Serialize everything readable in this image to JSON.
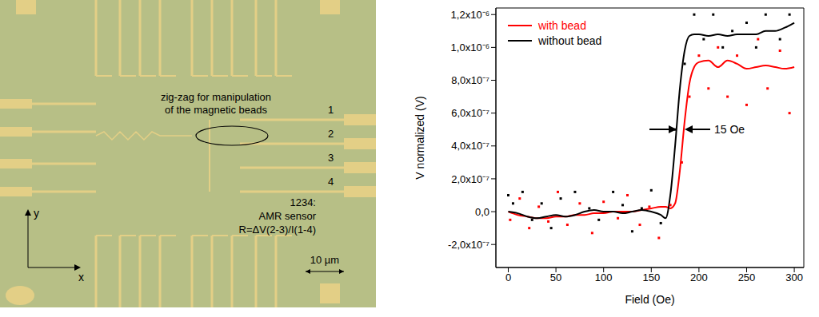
{
  "image_panel": {
    "zigzag_label": [
      "zig-zag for manipulation",
      "of the magnetic beads"
    ],
    "contact_numbers": [
      "1",
      "2",
      "3",
      "4"
    ],
    "sensor_label": [
      "1234:",
      "AMR sensor",
      "R=ΔV(2-3)/I(1-4)"
    ],
    "scale_bar": "10 µm",
    "axes": [
      "y",
      "x"
    ]
  },
  "chart_data": {
    "type": "line",
    "x_label": "Field (Oe)",
    "y_label": "V normalized (V)",
    "annotation": "15 Oe",
    "legend": "upper left",
    "marker": "square",
    "x": [
      0,
      10,
      20,
      30,
      40,
      50,
      60,
      70,
      80,
      90,
      100,
      110,
      120,
      130,
      140,
      150,
      160,
      165,
      170,
      175,
      180,
      185,
      190,
      195,
      200,
      210,
      220,
      230,
      240,
      250,
      260,
      270,
      280,
      290,
      300
    ],
    "series": [
      {
        "name": "with bead",
        "color": "#ff0000",
        "values": [
          0,
          -2e-08,
          -3e-08,
          -4e-08,
          -4e-08,
          -3e-08,
          -3e-08,
          -2e-08,
          -2e-08,
          -1e-08,
          -1e-08,
          0,
          0,
          0,
          1e-08,
          2e-08,
          3e-08,
          3e-08,
          2e-08,
          5e-08,
          2.5e-07,
          5.5e-07,
          7.8e-07,
          8.8e-07,
          9.1e-07,
          9.2e-07,
          8.8e-07,
          9.2e-07,
          9e-07,
          8.7e-07,
          8.8e-07,
          8.9e-07,
          8.8e-07,
          8.7e-07,
          8.8e-07
        ],
        "points": {
          "x": [
            2,
            12,
            22,
            32,
            42,
            52,
            62,
            75,
            88,
            100,
            115,
            125,
            138,
            148,
            158,
            170,
            182,
            190,
            200,
            210,
            220,
            230,
            240,
            250,
            262,
            272,
            285,
            295
          ],
          "values": [
            -5e-08,
            8e-08,
            -1e-07,
            3e-08,
            -6e-08,
            1.2e-07,
            -8e-08,
            5e-08,
            -1.3e-07,
            6e-08,
            -4e-08,
            1e-07,
            -8e-08,
            3e-08,
            -1.6e-07,
            4e-08,
            3e-07,
            7e-07,
            9.5e-07,
            7.5e-07,
            1e-06,
            7e-07,
            9.5e-07,
            6.5e-07,
            1.05e-06,
            7.5e-07,
            9.8e-07,
            6e-07
          ]
        }
      },
      {
        "name": "without bead",
        "color": "#000000",
        "values": [
          0,
          -1e-08,
          -3e-08,
          -4e-08,
          -3e-08,
          -2e-08,
          -3e-08,
          -2e-08,
          0,
          1e-08,
          0,
          0,
          -1e-08,
          0,
          1e-08,
          0,
          -2e-08,
          -4e-08,
          1e-07,
          4e-07,
          7.5e-07,
          9.8e-07,
          1.07e-06,
          1.08e-06,
          1.08e-06,
          1.07e-06,
          1.08e-06,
          1.07e-06,
          1.08e-06,
          1.08e-06,
          1.08e-06,
          1.1e-06,
          1.1e-06,
          1.12e-06,
          1.15e-06
        ],
        "points": {
          "x": [
            0,
            5,
            15,
            25,
            35,
            45,
            55,
            70,
            85,
            95,
            110,
            120,
            130,
            140,
            150,
            160,
            175,
            185,
            195,
            205,
            215,
            225,
            235,
            250,
            260,
            270,
            285,
            295
          ],
          "values": [
            1e-07,
            5e-08,
            1.2e-07,
            -5e-08,
            5e-08,
            -1e-07,
            8e-08,
            1.2e-07,
            2e-08,
            -5e-08,
            1.2e-07,
            4e-08,
            -1.2e-07,
            2e-08,
            1.3e-07,
            -7e-08,
            5e-07,
            9e-07,
            1.2e-06,
            1.05e-06,
            1.2e-06,
            1e-06,
            1.1e-06,
            1.15e-06,
            1e-06,
            1.2e-06,
            1.05e-06,
            1.2e-06
          ]
        }
      }
    ],
    "xlim": [
      -13,
      310
    ],
    "xticks": [
      0,
      50,
      100,
      150,
      200,
      250,
      300
    ],
    "ylim": [
      -3.4e-07,
      1.24e-06
    ],
    "yticks": [
      {
        "value": -2e-07,
        "label": "-2,0x10⁻⁷"
      },
      {
        "value": 0,
        "label": "0,0"
      },
      {
        "value": 2e-07,
        "label": "2,0x10⁻⁷"
      },
      {
        "value": 4e-07,
        "label": "4,0x10⁻⁷"
      },
      {
        "value": 6e-07,
        "label": "6,0x10⁻⁷"
      },
      {
        "value": 8e-07,
        "label": "8,0x10⁻⁷"
      },
      {
        "value": 1e-06,
        "label": "1,0x10⁻⁶"
      },
      {
        "value": 1.2e-06,
        "label": "1,2x10⁻⁶"
      }
    ]
  }
}
